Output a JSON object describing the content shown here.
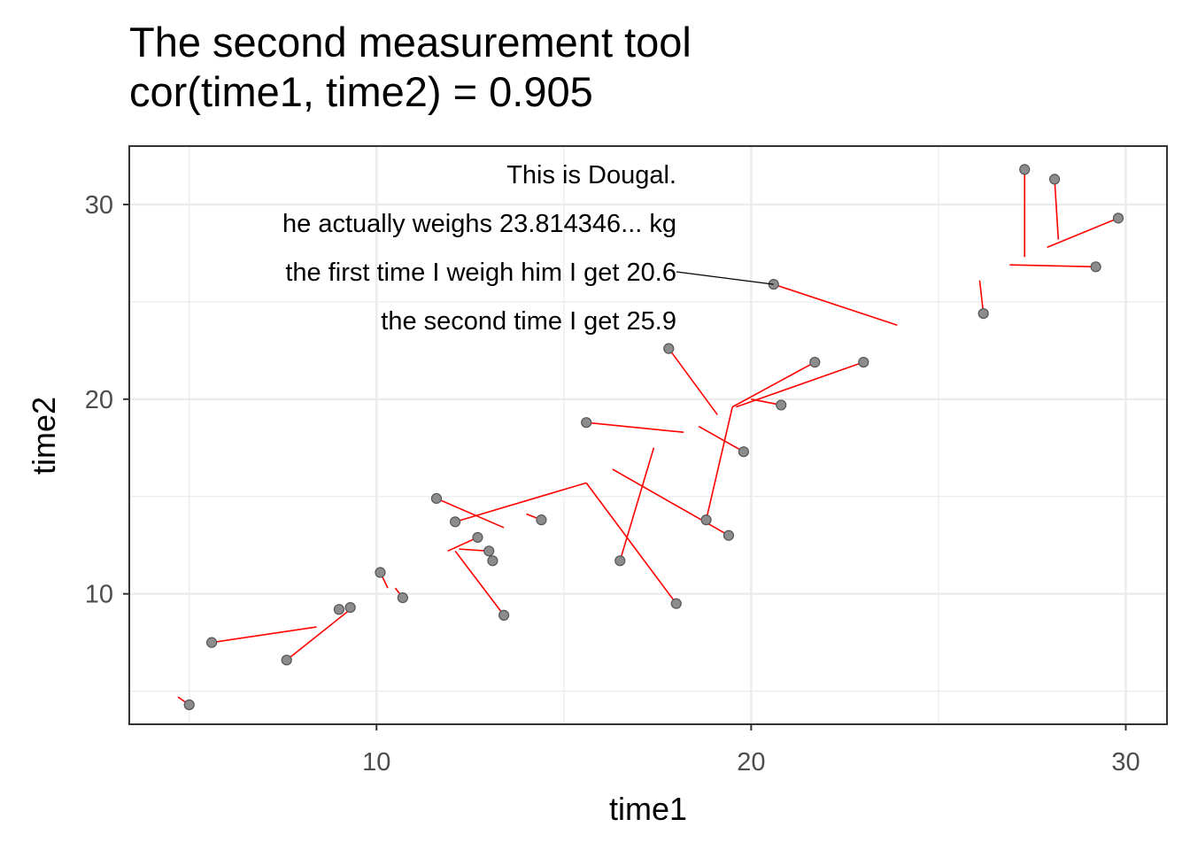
{
  "chart_data": {
    "type": "scatter",
    "title": "The second measurement tool",
    "subtitle": "cor(time1, time2) = 0.905",
    "xlabel": "time1",
    "ylabel": "time2",
    "xlim": [
      3.4,
      31.1
    ],
    "ylim": [
      3.3,
      33.0
    ],
    "xticks": [
      10,
      20,
      30
    ],
    "yticks": [
      10,
      20,
      30
    ],
    "grid": true,
    "points": [
      {
        "x": 5.0,
        "y": 4.3,
        "x0": 4.7,
        "y0": 4.7
      },
      {
        "x": 5.6,
        "y": 7.5,
        "x0": 8.4,
        "y0": 8.3
      },
      {
        "x": 7.6,
        "y": 6.6,
        "x0": 9.3,
        "y0": 9.2
      },
      {
        "x": 9.0,
        "y": 9.2,
        "x0": 8.9,
        "y0": 9.0
      },
      {
        "x": 9.3,
        "y": 9.3,
        "x0": 9.2,
        "y0": 9.2
      },
      {
        "x": 10.1,
        "y": 11.1,
        "x0": 10.3,
        "y0": 10.3
      },
      {
        "x": 10.7,
        "y": 9.8,
        "x0": 10.5,
        "y0": 10.3
      },
      {
        "x": 11.6,
        "y": 14.9,
        "x0": 13.4,
        "y0": 13.4
      },
      {
        "x": 12.1,
        "y": 13.7,
        "x0": 15.6,
        "y0": 15.7
      },
      {
        "x": 12.7,
        "y": 12.9,
        "x0": 11.9,
        "y0": 12.2
      },
      {
        "x": 13.0,
        "y": 12.2,
        "x0": 12.2,
        "y0": 12.3
      },
      {
        "x": 13.1,
        "y": 11.7,
        "x0": 13.0,
        "y0": 12.0
      },
      {
        "x": 13.4,
        "y": 8.9,
        "x0": 12.1,
        "y0": 12.2
      },
      {
        "x": 14.4,
        "y": 13.8,
        "x0": 14.0,
        "y0": 14.1
      },
      {
        "x": 15.6,
        "y": 18.8,
        "x0": 18.2,
        "y0": 18.3
      },
      {
        "x": 16.5,
        "y": 11.7,
        "x0": 17.4,
        "y0": 17.5
      },
      {
        "x": 17.8,
        "y": 22.6,
        "x0": 19.1,
        "y0": 19.2
      },
      {
        "x": 18.0,
        "y": 9.5,
        "x0": 15.6,
        "y0": 15.7
      },
      {
        "x": 18.8,
        "y": 13.8,
        "x0": 19.5,
        "y0": 19.6
      },
      {
        "x": 19.4,
        "y": 13.0,
        "x0": 16.3,
        "y0": 16.4
      },
      {
        "x": 19.8,
        "y": 17.3,
        "x0": 18.6,
        "y0": 18.6
      },
      {
        "x": 20.6,
        "y": 25.9,
        "x0": 23.9,
        "y0": 23.8
      },
      {
        "x": 20.8,
        "y": 19.7,
        "x0": 20.0,
        "y0": 20.0
      },
      {
        "x": 21.7,
        "y": 21.9,
        "x0": 19.5,
        "y0": 19.6
      },
      {
        "x": 23.0,
        "y": 21.9,
        "x0": 19.6,
        "y0": 19.6
      },
      {
        "x": 26.2,
        "y": 24.4,
        "x0": 26.1,
        "y0": 26.1
      },
      {
        "x": 27.3,
        "y": 31.8,
        "x0": 27.3,
        "y0": 27.3
      },
      {
        "x": 28.1,
        "y": 31.3,
        "x0": 28.2,
        "y0": 28.2
      },
      {
        "x": 29.2,
        "y": 26.8,
        "x0": 26.9,
        "y0": 26.9
      },
      {
        "x": 29.8,
        "y": 29.3,
        "x0": 27.9,
        "y0": 27.8
      }
    ],
    "annotation": {
      "lines": [
        "This is Dougal.",
        "he actually weighs 23.814346... kg",
        "the first time I weigh him I get 20.6",
        "the second time I get 25.9"
      ],
      "target": {
        "x": 20.6,
        "y": 25.9
      }
    },
    "colors": {
      "point_fill": "#8c8c8c",
      "point_stroke": "#555555",
      "segment": "#ff0000",
      "grid": "#ebebeb",
      "panel_border": "#333333",
      "pointer": "#000000"
    }
  }
}
